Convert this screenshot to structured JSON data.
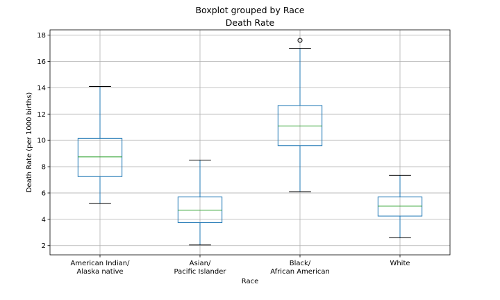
{
  "chart_data": {
    "type": "box",
    "suptitle": "Boxplot grouped by Race",
    "title": "Death Rate",
    "xlabel": "Race",
    "ylabel": "Death Rate (per 1000 births)",
    "ylim": [
      1.3,
      18.4
    ],
    "yticks": [
      2,
      4,
      6,
      8,
      10,
      12,
      14,
      16,
      18
    ],
    "grid": true,
    "colors": {
      "box": "#1f77b4",
      "median": "#2ca02c",
      "whisker": "#1f77b4",
      "cap": "#000000",
      "grid": "#b0b0b0"
    },
    "groups": [
      {
        "label_lines": [
          "American Indian/",
          "Alaska native"
        ],
        "whisker_low": 5.2,
        "q1": 7.25,
        "median": 8.75,
        "q3": 10.15,
        "whisker_high": 14.1,
        "outliers": []
      },
      {
        "label_lines": [
          "Asian/",
          "Pacific Islander"
        ],
        "whisker_low": 2.05,
        "q1": 3.75,
        "median": 4.7,
        "q3": 5.7,
        "whisker_high": 8.5,
        "outliers": []
      },
      {
        "label_lines": [
          "Black/",
          "African American"
        ],
        "whisker_low": 6.1,
        "q1": 9.6,
        "median": 11.1,
        "q3": 12.65,
        "whisker_high": 17.0,
        "outliers": [
          17.6
        ]
      },
      {
        "label_lines": [
          "White"
        ],
        "whisker_low": 2.6,
        "q1": 4.25,
        "median": 5.0,
        "q3": 5.7,
        "whisker_high": 7.35,
        "outliers": []
      }
    ]
  }
}
